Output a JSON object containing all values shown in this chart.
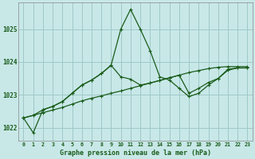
{
  "title": "Graphe pression niveau de la mer (hPa)",
  "bg_color": "#c8e8e8",
  "grid_color": "#a0c8c8",
  "line_color": "#1a5c1a",
  "x_labels": [
    "0",
    "1",
    "2",
    "3",
    "4",
    "5",
    "6",
    "7",
    "8",
    "9",
    "10",
    "11",
    "12",
    "13",
    "14",
    "15",
    "16",
    "17",
    "18",
    "19",
    "20",
    "21",
    "22",
    "23"
  ],
  "ylim": [
    1021.6,
    1025.8
  ],
  "yticks": [
    1022,
    1023,
    1024,
    1025
  ],
  "series1": [
    1022.3,
    1021.85,
    1022.55,
    1022.65,
    1022.8,
    1023.05,
    1023.3,
    1023.45,
    1023.65,
    1023.9,
    1025.0,
    1025.6,
    1025.0,
    1024.35,
    1023.55,
    1023.45,
    1023.2,
    1022.95,
    1023.05,
    1023.3,
    1023.5,
    1023.75,
    1023.82,
    1023.82
  ],
  "series2": [
    1022.3,
    1022.38,
    1022.46,
    1022.54,
    1022.62,
    1022.72,
    1022.82,
    1022.9,
    1022.97,
    1023.05,
    1023.12,
    1023.2,
    1023.28,
    1023.36,
    1023.44,
    1023.52,
    1023.6,
    1023.68,
    1023.74,
    1023.8,
    1023.84,
    1023.86,
    1023.86,
    1023.86
  ],
  "series3": [
    1022.3,
    1022.38,
    1022.55,
    1022.65,
    1022.8,
    1023.05,
    1023.3,
    1023.45,
    1023.65,
    1023.9,
    1023.55,
    1023.48,
    1023.3,
    1023.36,
    1023.44,
    1023.52,
    1023.6,
    1023.05,
    1023.2,
    1023.38,
    1023.5,
    1023.78,
    1023.82,
    1023.82
  ]
}
